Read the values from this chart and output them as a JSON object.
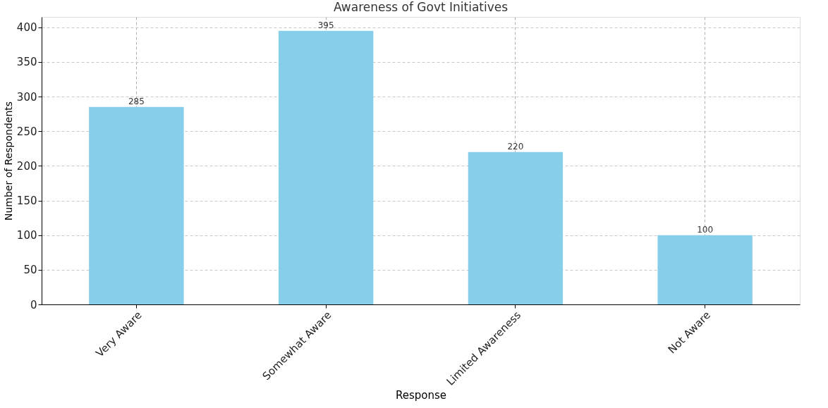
{
  "chart_data": {
    "type": "bar",
    "title": "Awareness of Govt Initiatives",
    "xlabel": "Response",
    "ylabel": "Number of Respondents",
    "categories": [
      "Very Aware",
      "Somewhat Aware",
      "Limited Awareness",
      "Not Aware"
    ],
    "values": [
      285,
      395,
      220,
      100
    ],
    "color": "#87ceeb",
    "ylim": [
      0,
      415
    ],
    "yticks": [
      0,
      50,
      100,
      150,
      200,
      250,
      300,
      350,
      400
    ],
    "grid": true,
    "data_labels": true
  }
}
